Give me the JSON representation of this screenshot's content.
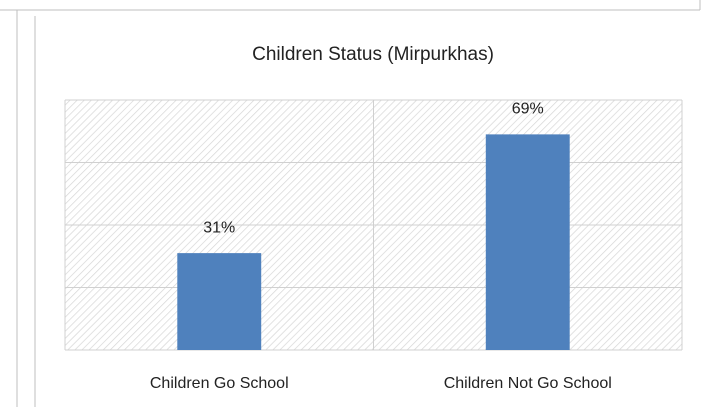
{
  "chart_data": {
    "type": "bar",
    "title": "Children Status (Mirpurkhas)",
    "categories": [
      "Children Go School",
      "Children Not Go School"
    ],
    "values": [
      31,
      69
    ],
    "value_labels": [
      "31%",
      "69%"
    ],
    "color": "#4f81bd",
    "ylim": [
      0,
      80
    ],
    "yticks": [
      0,
      20,
      40,
      60,
      80
    ],
    "grid": true
  }
}
